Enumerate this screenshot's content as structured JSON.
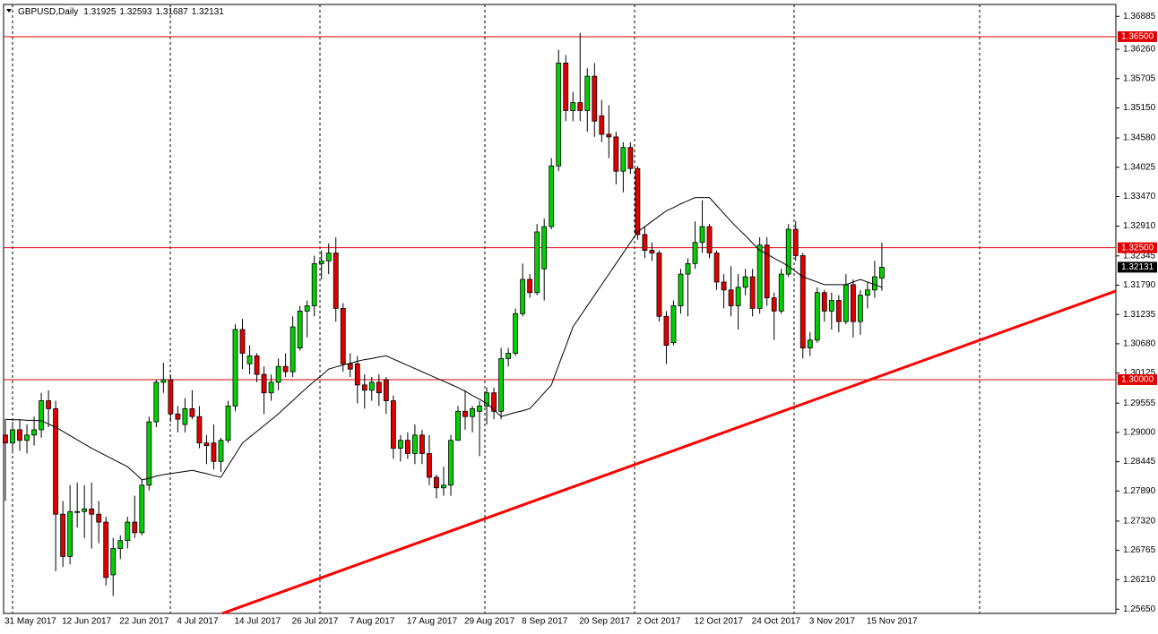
{
  "chart_data": {
    "type": "candlestick",
    "title": "GBPUSD,Daily",
    "categories": [
      "31 May 2017",
      null,
      null,
      null,
      null,
      null,
      null,
      null,
      "12 Jun 2017",
      null,
      null,
      null,
      null,
      null,
      null,
      null,
      "22 Jun 2017",
      null,
      null,
      null,
      null,
      null,
      null,
      null,
      "4 Jul 2017",
      null,
      null,
      null,
      null,
      null,
      null,
      null,
      "14 Jul 2017",
      null,
      null,
      null,
      null,
      null,
      null,
      null,
      "26 Jul 2017",
      null,
      null,
      null,
      null,
      null,
      null,
      null,
      "7 Aug 2017",
      null,
      null,
      null,
      null,
      null,
      null,
      null,
      "17 Aug 2017",
      null,
      null,
      null,
      null,
      null,
      null,
      null,
      "29 Aug 2017",
      null,
      null,
      null,
      null,
      null,
      null,
      null,
      "8 Sep 2017",
      null,
      null,
      null,
      null,
      null,
      null,
      null,
      "20 Sep 2017",
      null,
      null,
      null,
      null,
      null,
      null,
      null,
      "2 Oct 2017",
      null,
      null,
      null,
      null,
      null,
      null,
      null,
      "12 Oct 2017",
      null,
      null,
      null,
      null,
      null,
      null,
      null,
      "24 Oct 2017",
      null,
      null,
      null,
      null,
      null,
      null,
      null,
      "3 Nov 2017",
      null,
      null,
      null,
      null,
      null,
      null,
      null,
      "15 Nov 2017",
      null,
      null
    ],
    "open": [
      1.2895,
      1.288,
      1.2905,
      1.2885,
      1.2895,
      1.2905,
      1.296,
      1.2945,
      1.2745,
      1.2665,
      1.275,
      1.275,
      1.2755,
      1.2745,
      1.273,
      1.263,
      1.268,
      1.2695,
      1.273,
      1.271,
      1.28,
      1.292,
      1.2995,
      1.3,
      1.2935,
      1.2915,
      1.2945,
      1.293,
      1.288,
      1.288,
      1.2845,
      1.2885,
      1.295,
      1.3095,
      1.303,
      1.3045,
      1.301,
      1.2975,
      1.2995,
      1.3025,
      1.3015,
      1.306,
      1.313,
      1.314,
      1.322,
      1.3225,
      1.324,
      1.3135,
      1.303,
      1.303,
      1.299,
      1.298,
      1.2995,
      1.3,
      1.296,
      1.287,
      1.2885,
      1.286,
      1.2895,
      1.286,
      1.2815,
      1.2795,
      1.28,
      1.2885,
      1.294,
      1.293,
      1.294,
      1.295,
      1.2975,
      1.294,
      1.304,
      1.305,
      1.3125,
      1.319,
      1.3165,
      1.321,
      1.329,
      1.3405,
      1.36,
      1.351,
      1.3525,
      1.351,
      1.3575,
      1.35,
      1.3465,
      1.346,
      1.3395,
      1.344,
      1.34,
      1.3275,
      1.3245,
      1.324,
      1.312,
      1.307,
      1.314,
      1.32,
      1.322,
      1.326,
      1.329,
      1.324,
      1.3185,
      1.317,
      1.314,
      1.3175,
      1.3195,
      1.3135,
      1.3255,
      1.3155,
      1.313,
      1.32,
      1.3285,
      1.3235,
      1.306,
      1.3075,
      1.3165,
      1.313,
      1.315,
      1.311,
      1.318,
      1.311,
      1.316,
      1.317,
      1.31925
    ],
    "high": [
      1.2925,
      1.292,
      1.2925,
      1.2915,
      1.293,
      1.2975,
      1.298,
      1.296,
      1.277,
      1.28,
      1.2805,
      1.28,
      1.2805,
      1.277,
      1.274,
      1.27,
      1.2705,
      1.274,
      1.278,
      1.281,
      1.293,
      1.3,
      1.3032,
      1.301,
      1.295,
      1.2965,
      1.298,
      1.295,
      1.2895,
      1.2915,
      1.289,
      1.296,
      1.3105,
      1.3115,
      1.3065,
      1.305,
      1.3025,
      1.301,
      1.304,
      1.305,
      1.312,
      1.314,
      1.315,
      1.3235,
      1.3245,
      1.3258,
      1.327,
      1.3145,
      1.305,
      1.3045,
      1.301,
      1.3005,
      1.301,
      1.3005,
      1.297,
      1.2895,
      1.29,
      1.2915,
      1.2905,
      1.2895,
      1.282,
      1.2835,
      1.2895,
      1.295,
      1.298,
      1.295,
      1.296,
      1.2985,
      1.2985,
      1.306,
      1.306,
      1.3135,
      1.322,
      1.32,
      1.3295,
      1.3305,
      1.342,
      1.3625,
      1.3615,
      1.3545,
      1.3657,
      1.359,
      1.36,
      1.353,
      1.352,
      1.347,
      1.345,
      1.345,
      1.3405,
      1.329,
      1.326,
      1.3245,
      1.313,
      1.315,
      1.321,
      1.323,
      1.33,
      1.334,
      1.3295,
      1.3245,
      1.32,
      1.3215,
      1.32,
      1.321,
      1.321,
      1.327,
      1.327,
      1.3165,
      1.321,
      1.3295,
      1.33,
      1.324,
      1.309,
      1.3175,
      1.317,
      1.3165,
      1.316,
      1.32,
      1.319,
      1.317,
      1.3185,
      1.3225,
      1.32593
    ],
    "low": [
      1.277,
      1.286,
      1.2865,
      1.286,
      1.2875,
      1.289,
      1.291,
      1.2637,
      1.2645,
      1.265,
      1.272,
      1.27,
      1.268,
      1.269,
      1.261,
      1.259,
      1.266,
      1.268,
      1.27,
      1.2705,
      1.279,
      1.291,
      1.2975,
      1.292,
      1.29,
      1.29,
      1.2925,
      1.287,
      1.284,
      1.283,
      1.2825,
      1.288,
      1.294,
      1.302,
      1.301,
      1.2995,
      1.2935,
      1.296,
      1.298,
      1.3005,
      1.3005,
      1.3055,
      1.308,
      1.312,
      1.319,
      1.32,
      1.311,
      1.3015,
      1.3005,
      1.2955,
      1.2945,
      1.296,
      1.295,
      1.2935,
      1.285,
      1.2845,
      1.285,
      1.284,
      1.284,
      1.28,
      1.2775,
      1.278,
      1.278,
      1.2885,
      1.2905,
      1.29,
      1.2855,
      1.2915,
      1.2925,
      1.2925,
      1.3025,
      1.3045,
      1.312,
      1.3155,
      1.316,
      1.315,
      1.3285,
      1.3395,
      1.349,
      1.349,
      1.349,
      1.347,
      1.346,
      1.345,
      1.342,
      1.337,
      1.3355,
      1.339,
      1.3265,
      1.323,
      1.3225,
      1.311,
      1.303,
      1.3065,
      1.3125,
      1.312,
      1.321,
      1.324,
      1.323,
      1.317,
      1.3135,
      1.312,
      1.3095,
      1.316,
      1.312,
      1.3125,
      1.314,
      1.3075,
      1.3125,
      1.3195,
      1.3225,
      1.304,
      1.3045,
      1.307,
      1.311,
      1.3095,
      1.309,
      1.3105,
      1.308,
      1.3085,
      1.3135,
      1.3155,
      1.31687
    ],
    "close": [
      1.288,
      1.2905,
      1.2885,
      1.2895,
      1.2905,
      1.296,
      1.2945,
      1.2745,
      1.2665,
      1.275,
      1.275,
      1.2755,
      1.2745,
      1.273,
      1.2625,
      1.268,
      1.2695,
      1.273,
      1.271,
      1.28,
      1.292,
      1.2995,
      1.3,
      1.2935,
      1.2925,
      1.2945,
      1.293,
      1.288,
      1.2875,
      1.2845,
      1.2885,
      1.295,
      1.3095,
      1.305,
      1.3045,
      1.301,
      1.2975,
      1.2995,
      1.3025,
      1.3015,
      1.31,
      1.313,
      1.314,
      1.322,
      1.3225,
      1.324,
      1.3135,
      1.303,
      1.302,
      1.299,
      1.298,
      1.2995,
      1.2975,
      1.296,
      1.287,
      1.2885,
      1.286,
      1.2895,
      1.286,
      1.2815,
      1.2795,
      1.28,
      1.2885,
      1.294,
      1.293,
      1.2945,
      1.295,
      1.2975,
      1.294,
      1.304,
      1.305,
      1.3125,
      1.319,
      1.3165,
      1.328,
      1.329,
      1.3405,
      1.36,
      1.351,
      1.3525,
      1.351,
      1.3575,
      1.349,
      1.3465,
      1.346,
      1.3395,
      1.344,
      1.34,
      1.3275,
      1.3245,
      1.324,
      1.312,
      1.3065,
      1.314,
      1.32,
      1.322,
      1.326,
      1.329,
      1.324,
      1.3185,
      1.317,
      1.314,
      1.3175,
      1.3195,
      1.3135,
      1.3255,
      1.3155,
      1.313,
      1.32,
      1.3285,
      1.3235,
      1.306,
      1.3075,
      1.3165,
      1.313,
      1.315,
      1.311,
      1.318,
      1.311,
      1.316,
      1.317,
      1.3195,
      1.32131
    ],
    "up_color": "#00d200",
    "down_color": "#e00000",
    "series": [
      {
        "type": "line",
        "color": "#000000",
        "values": [
          1.2925,
          1.2924,
          1.2924,
          1.2923,
          1.2923,
          1.2922,
          1.2916,
          1.291,
          1.2902,
          1.2894,
          1.2886,
          1.2878,
          1.287,
          1.2863,
          1.2856,
          1.2849,
          1.2842,
          1.2835,
          1.2823,
          1.281,
          1.2813,
          1.2817,
          1.282,
          1.2822,
          1.2824,
          1.2826,
          1.2828,
          1.2825,
          1.2822,
          1.2818,
          1.2815,
          1.2837,
          1.2858,
          1.288,
          1.2891,
          1.2902,
          1.2913,
          1.2924,
          1.2935,
          1.2948,
          1.296,
          1.2973,
          1.2985,
          1.2997,
          1.3008,
          1.302,
          1.3024,
          1.3028,
          1.3031,
          1.3035,
          1.3038,
          1.304,
          1.3043,
          1.3045,
          1.3039,
          1.3033,
          1.3027,
          1.3021,
          1.3015,
          1.3009,
          1.3003,
          1.2997,
          1.2991,
          1.2985,
          1.2978,
          1.297,
          1.2963,
          1.2955,
          1.2943,
          1.293,
          1.2934,
          1.2938,
          1.2941,
          1.2945,
          1.296,
          1.2975,
          1.299,
          1.3027,
          1.3063,
          1.31,
          1.312,
          1.314,
          1.316,
          1.318,
          1.32,
          1.322,
          1.324,
          1.326,
          1.328,
          1.329,
          1.33,
          1.331,
          1.332,
          1.3326,
          1.3333,
          1.3339,
          1.3345,
          1.3345,
          1.3345,
          1.333,
          1.3315,
          1.33,
          1.3286,
          1.3273,
          1.3259,
          1.3245,
          1.3238,
          1.323,
          1.3223,
          1.3215,
          1.3205,
          1.3195,
          1.319,
          1.3185,
          1.318,
          1.318,
          1.318,
          1.318,
          1.3185,
          1.319,
          1.3185,
          1.318,
          1.3175
        ]
      }
    ],
    "xlim": [
      -0.25,
      154.57
    ],
    "ylim": [
      1.2557,
      1.3711
    ],
    "yticks": [
      1.36885,
      {
        "value": 1.3626,
        "label": "1.36260"
      },
      1.35705,
      {
        "value": 1.3515,
        "label": "1.35150"
      },
      {
        "value": 1.3458,
        "label": "1.34580"
      },
      1.34025,
      {
        "value": 1.3347,
        "label": "1.33470"
      },
      {
        "value": 1.3291,
        "label": "1.32910"
      },
      1.32345,
      {
        "value": 1.3179,
        "label": "1.31790"
      },
      1.31235,
      {
        "value": 1.3068,
        "label": "1.30680"
      },
      1.30125,
      1.29555,
      {
        "value": 1.29,
        "label": "1.29000"
      },
      1.28445,
      {
        "value": 1.2789,
        "label": "1.27890"
      },
      {
        "value": 1.2732,
        "label": "1.27320"
      },
      1.26765,
      {
        "value": 1.2621,
        "label": "1.26210"
      },
      {
        "value": 1.2565,
        "label": "1.25650"
      }
    ],
    "levels": [
      {
        "value": 1.365,
        "label": "1.36500"
      },
      {
        "value": 1.325,
        "label": "1.32500"
      },
      {
        "value": 1.3,
        "label": "1.30000"
      }
    ],
    "level_color": "#e00000",
    "trendline": {
      "x": [
        30.2,
        154.57
      ],
      "y": [
        1.2557,
        1.3168
      ],
      "color": "#ff0000"
    }
  }
}
